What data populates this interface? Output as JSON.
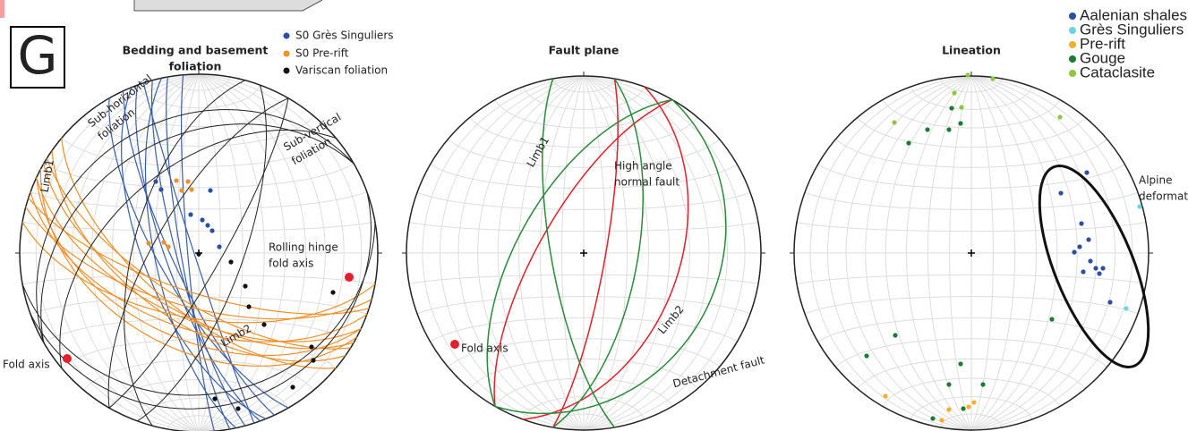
{
  "panel_label": "G",
  "panels": [
    {
      "title": [
        "Bedding and basement",
        "foliation"
      ],
      "legend": [
        "S0 Grès Singuliers",
        "S0 Pre-rift",
        "Variscan foliation"
      ],
      "annotations": [
        [
          "Sub-horizontal",
          "foliation"
        ],
        [
          "Sub-vertical",
          "foliation"
        ],
        [
          "Limb1"
        ],
        [
          "Rolling hinge",
          "fold axis"
        ],
        [
          "Limb2"
        ],
        [
          "Fold axis"
        ]
      ]
    },
    {
      "title": [
        "Fault plane"
      ],
      "annotations": [
        [
          "Limb1"
        ],
        [
          "High angle",
          "normal fault"
        ],
        [
          "Limb2"
        ],
        [
          "Fold axis"
        ],
        [
          "Detachment fault"
        ]
      ]
    },
    {
      "title": [
        "Lineation"
      ],
      "legend": [
        "Aalenian shales",
        "Grès Singuliers",
        "Pre-rift",
        "Gouge",
        "Cataclasite"
      ],
      "annotations": [
        [
          "Alpine",
          "deformation"
        ]
      ]
    }
  ]
}
